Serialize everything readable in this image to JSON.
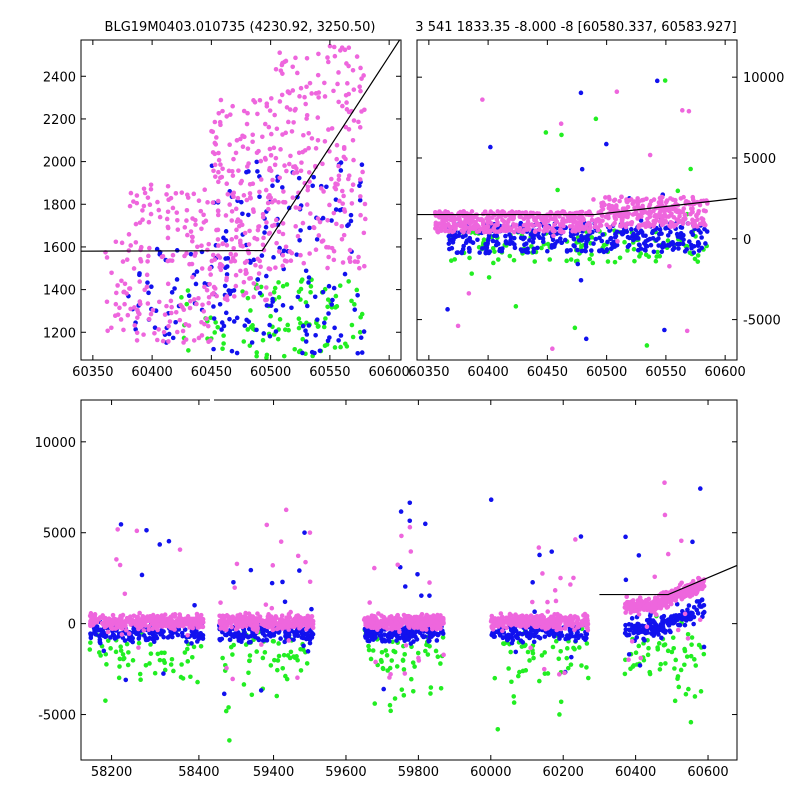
{
  "figure": {
    "title_left": "BLG19M0403.010735 (4230.92, 3250.50)",
    "title_right": "3 541 1833.35 -8.000 -8 [60580.337, 60583.927]"
  },
  "colors": {
    "pink": "#ee66dd",
    "blue": "#1111ee",
    "green": "#22ee22",
    "model": "#000000"
  },
  "chart_data": [
    {
      "type": "scatter",
      "title": "BLG19M0403.010735 (4230.92, 3250.50)",
      "xlim": [
        60340,
        60610
      ],
      "ylim": [
        1070,
        2570
      ],
      "xticks": [
        "60350",
        "60400",
        "60450",
        "60500",
        "60550",
        "60600"
      ],
      "yticks": [
        "1200",
        "1400",
        "1600",
        "1800",
        "2000",
        "2200",
        "2400"
      ],
      "series": [
        {
          "color": "pink",
          "density": [
            [
              60360,
              60380,
              1200,
              1650,
              25
            ],
            [
              60380,
              60450,
              1150,
              1900,
              160
            ],
            [
              60450,
              60500,
              1350,
              2300,
              190
            ],
            [
              60500,
              60580,
              1500,
              2550,
              230
            ]
          ]
        },
        {
          "color": "blue",
          "density": [
            [
              60380,
              60450,
              1150,
              1600,
              40
            ],
            [
              60450,
              60580,
              1100,
              2000,
              160
            ]
          ]
        },
        {
          "color": "green",
          "density": [
            [
              60420,
              60480,
              1100,
              1400,
              20
            ],
            [
              60480,
              60580,
              1080,
              1450,
              90
            ]
          ]
        }
      ],
      "model": [
        [
          60340,
          1580
        ],
        [
          60493,
          1583
        ],
        [
          60610,
          2580
        ]
      ]
    },
    {
      "type": "scatter",
      "title": "3 541 1833.35 -8.000 -8 [60580.337, 60583.927]",
      "xlim": [
        60340,
        60610
      ],
      "ylim": [
        -7500,
        12300
      ],
      "xticks": [
        "60350",
        "60400",
        "60450",
        "60500",
        "60550",
        "60600"
      ],
      "yticks": [
        "-5000",
        "0",
        "5000",
        "10000"
      ],
      "series": [
        {
          "color": "pink",
          "density": [
            [
              60355,
              60495,
              400,
              1700,
              420
            ],
            [
              60495,
              60585,
              700,
              2600,
              280
            ]
          ]
        },
        {
          "color": "blue",
          "density": [
            [
              60365,
              60585,
              -900,
              1000,
              380
            ]
          ]
        },
        {
          "color": "green",
          "density": [
            [
              60365,
              60585,
              -1500,
              500,
              130
            ]
          ]
        }
      ],
      "model": [
        [
          60340,
          1500
        ],
        [
          60490,
          1500
        ],
        [
          60610,
          2500
        ]
      ]
    },
    {
      "type": "scatter",
      "xlim": [
        58130,
        60680
      ],
      "ylim": [
        -7500,
        12300
      ],
      "xticks": [
        "58200",
        "58400",
        "59400",
        "59600",
        "59800",
        "60000",
        "60200",
        "60400",
        "60600"
      ],
      "yticks": [
        "-5000",
        "0",
        "5000",
        "10000"
      ],
      "seasons": [
        [
          58150,
          58410
        ],
        [
          59250,
          59510
        ],
        [
          59650,
          59870
        ],
        [
          60000,
          60270
        ],
        [
          60370,
          60590
        ]
      ],
      "series": [
        {
          "color": "pink",
          "note": "dense band around 0 to 1500 in each season"
        },
        {
          "color": "blue",
          "note": "band around -1000 to 500"
        },
        {
          "color": "green",
          "note": "scattered -4000 to 500"
        }
      ],
      "model": [
        [
          60300,
          1600
        ],
        [
          60490,
          1600
        ],
        [
          60680,
          3200
        ]
      ]
    }
  ]
}
